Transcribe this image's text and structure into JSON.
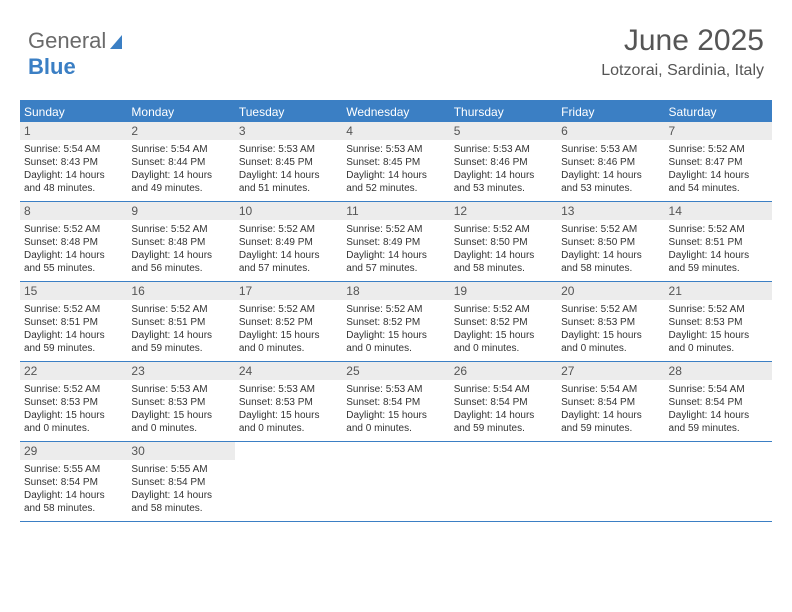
{
  "logo": {
    "text1": "General",
    "text2": "Blue"
  },
  "header": {
    "title": "June 2025",
    "location": "Lotzorai, Sardinia, Italy"
  },
  "colors": {
    "brand": "#3b7fc4",
    "header_bg": "#3b7fc4",
    "header_text": "#ffffff",
    "daynum_bg": "#ececec",
    "text": "#333333",
    "muted": "#555555"
  },
  "weekdays": [
    "Sunday",
    "Monday",
    "Tuesday",
    "Wednesday",
    "Thursday",
    "Friday",
    "Saturday"
  ],
  "days": [
    {
      "n": "1",
      "sr": "5:54 AM",
      "ss": "8:43 PM",
      "dl": "14 hours and 48 minutes."
    },
    {
      "n": "2",
      "sr": "5:54 AM",
      "ss": "8:44 PM",
      "dl": "14 hours and 49 minutes."
    },
    {
      "n": "3",
      "sr": "5:53 AM",
      "ss": "8:45 PM",
      "dl": "14 hours and 51 minutes."
    },
    {
      "n": "4",
      "sr": "5:53 AM",
      "ss": "8:45 PM",
      "dl": "14 hours and 52 minutes."
    },
    {
      "n": "5",
      "sr": "5:53 AM",
      "ss": "8:46 PM",
      "dl": "14 hours and 53 minutes."
    },
    {
      "n": "6",
      "sr": "5:53 AM",
      "ss": "8:46 PM",
      "dl": "14 hours and 53 minutes."
    },
    {
      "n": "7",
      "sr": "5:52 AM",
      "ss": "8:47 PM",
      "dl": "14 hours and 54 minutes."
    },
    {
      "n": "8",
      "sr": "5:52 AM",
      "ss": "8:48 PM",
      "dl": "14 hours and 55 minutes."
    },
    {
      "n": "9",
      "sr": "5:52 AM",
      "ss": "8:48 PM",
      "dl": "14 hours and 56 minutes."
    },
    {
      "n": "10",
      "sr": "5:52 AM",
      "ss": "8:49 PM",
      "dl": "14 hours and 57 minutes."
    },
    {
      "n": "11",
      "sr": "5:52 AM",
      "ss": "8:49 PM",
      "dl": "14 hours and 57 minutes."
    },
    {
      "n": "12",
      "sr": "5:52 AM",
      "ss": "8:50 PM",
      "dl": "14 hours and 58 minutes."
    },
    {
      "n": "13",
      "sr": "5:52 AM",
      "ss": "8:50 PM",
      "dl": "14 hours and 58 minutes."
    },
    {
      "n": "14",
      "sr": "5:52 AM",
      "ss": "8:51 PM",
      "dl": "14 hours and 59 minutes."
    },
    {
      "n": "15",
      "sr": "5:52 AM",
      "ss": "8:51 PM",
      "dl": "14 hours and 59 minutes."
    },
    {
      "n": "16",
      "sr": "5:52 AM",
      "ss": "8:51 PM",
      "dl": "14 hours and 59 minutes."
    },
    {
      "n": "17",
      "sr": "5:52 AM",
      "ss": "8:52 PM",
      "dl": "15 hours and 0 minutes."
    },
    {
      "n": "18",
      "sr": "5:52 AM",
      "ss": "8:52 PM",
      "dl": "15 hours and 0 minutes."
    },
    {
      "n": "19",
      "sr": "5:52 AM",
      "ss": "8:52 PM",
      "dl": "15 hours and 0 minutes."
    },
    {
      "n": "20",
      "sr": "5:52 AM",
      "ss": "8:53 PM",
      "dl": "15 hours and 0 minutes."
    },
    {
      "n": "21",
      "sr": "5:52 AM",
      "ss": "8:53 PM",
      "dl": "15 hours and 0 minutes."
    },
    {
      "n": "22",
      "sr": "5:52 AM",
      "ss": "8:53 PM",
      "dl": "15 hours and 0 minutes."
    },
    {
      "n": "23",
      "sr": "5:53 AM",
      "ss": "8:53 PM",
      "dl": "15 hours and 0 minutes."
    },
    {
      "n": "24",
      "sr": "5:53 AM",
      "ss": "8:53 PM",
      "dl": "15 hours and 0 minutes."
    },
    {
      "n": "25",
      "sr": "5:53 AM",
      "ss": "8:54 PM",
      "dl": "15 hours and 0 minutes."
    },
    {
      "n": "26",
      "sr": "5:54 AM",
      "ss": "8:54 PM",
      "dl": "14 hours and 59 minutes."
    },
    {
      "n": "27",
      "sr": "5:54 AM",
      "ss": "8:54 PM",
      "dl": "14 hours and 59 minutes."
    },
    {
      "n": "28",
      "sr": "5:54 AM",
      "ss": "8:54 PM",
      "dl": "14 hours and 59 minutes."
    },
    {
      "n": "29",
      "sr": "5:55 AM",
      "ss": "8:54 PM",
      "dl": "14 hours and 58 minutes."
    },
    {
      "n": "30",
      "sr": "5:55 AM",
      "ss": "8:54 PM",
      "dl": "14 hours and 58 minutes."
    }
  ],
  "labels": {
    "sunrise": "Sunrise: ",
    "sunset": "Sunset: ",
    "daylight": "Daylight: "
  }
}
